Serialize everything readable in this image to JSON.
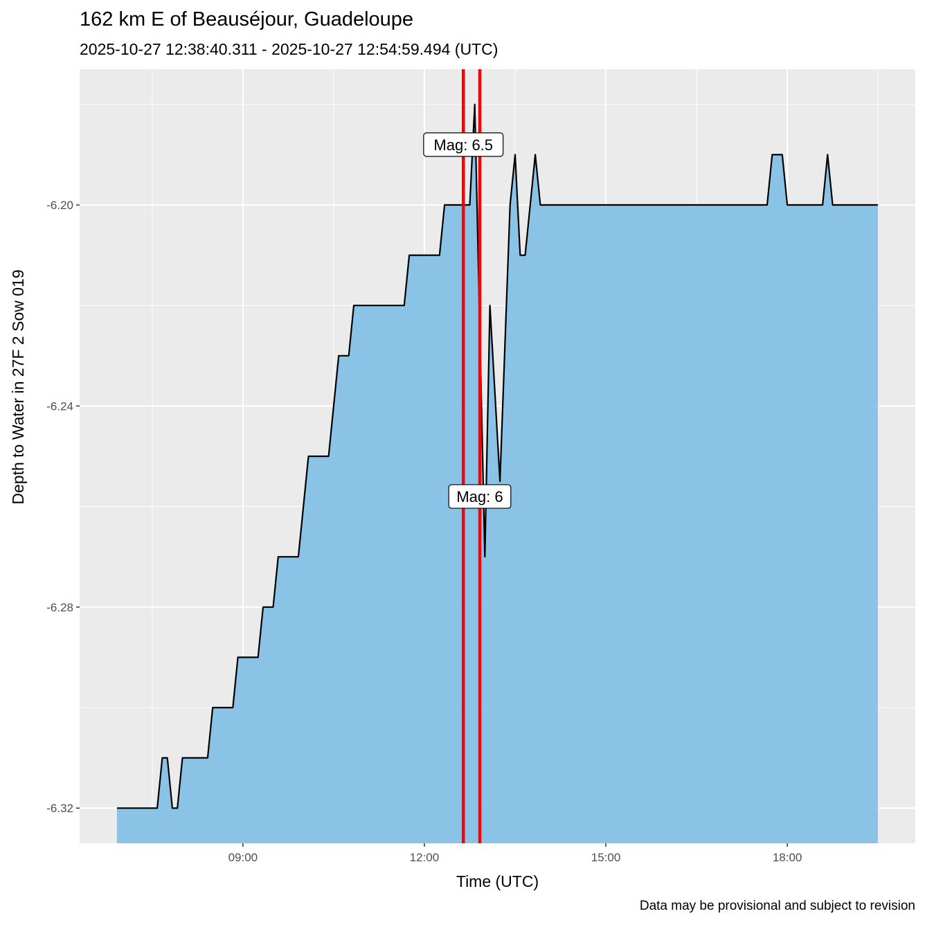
{
  "chart_data": {
    "type": "area",
    "title": "162 km E of Beauséjour, Guadeloupe",
    "subtitle": "2025-10-27 12:38:40.311  -  2025-10-27 12:54:59.494 (UTC)",
    "xlabel": "Time (UTC)",
    "ylabel": "Depth to Water in 27F 2 Sow 019",
    "caption": "Data may be provisional and subject to revision",
    "xlim": [
      "06:18",
      "20:07"
    ],
    "ylim": [
      -6.327,
      -6.173
    ],
    "x_ticks": [
      "09:00",
      "12:00",
      "15:00",
      "18:00"
    ],
    "y_ticks": [
      -6.2,
      -6.24,
      -6.28,
      -6.32
    ],
    "y_tick_labels": [
      "-6.20",
      "-6.24",
      "-6.28",
      "-6.32"
    ],
    "grid": true,
    "colors": {
      "fill": "#86C1E7",
      "line": "#000000",
      "event": "#FF0000",
      "panel": "#EBEBEB"
    },
    "x": [
      "06:55",
      "07:35",
      "07:40",
      "07:45",
      "07:50",
      "07:55",
      "08:00",
      "08:25",
      "08:30",
      "08:50",
      "08:55",
      "09:15",
      "09:20",
      "09:30",
      "09:35",
      "09:55",
      "10:05",
      "10:25",
      "10:35",
      "10:45",
      "10:50",
      "11:40",
      "11:45",
      "12:15",
      "12:20",
      "12:45",
      "12:50",
      "13:00",
      "13:05",
      "13:15",
      "13:25",
      "13:30",
      "13:35",
      "13:40",
      "13:50",
      "13:55",
      "17:40",
      "17:45",
      "17:55",
      "18:00",
      "18:35",
      "18:40",
      "18:45",
      "19:30"
    ],
    "values": [
      -6.32,
      -6.32,
      -6.31,
      -6.31,
      -6.32,
      -6.32,
      -6.31,
      -6.31,
      -6.3,
      -6.3,
      -6.29,
      -6.29,
      -6.28,
      -6.28,
      -6.27,
      -6.27,
      -6.25,
      -6.25,
      -6.23,
      -6.23,
      -6.22,
      -6.22,
      -6.21,
      -6.21,
      -6.2,
      -6.2,
      -6.18,
      -6.27,
      -6.22,
      -6.255,
      -6.2,
      -6.19,
      -6.21,
      -6.21,
      -6.19,
      -6.2,
      -6.2,
      -6.19,
      -6.19,
      -6.2,
      -6.2,
      -6.19,
      -6.2,
      -6.2
    ],
    "events": [
      {
        "time": "12:38:40",
        "label": "Mag: 6.5",
        "label_y": -6.188
      },
      {
        "time": "12:54:59",
        "label": "Mag: 6",
        "label_y": -6.258
      }
    ]
  }
}
